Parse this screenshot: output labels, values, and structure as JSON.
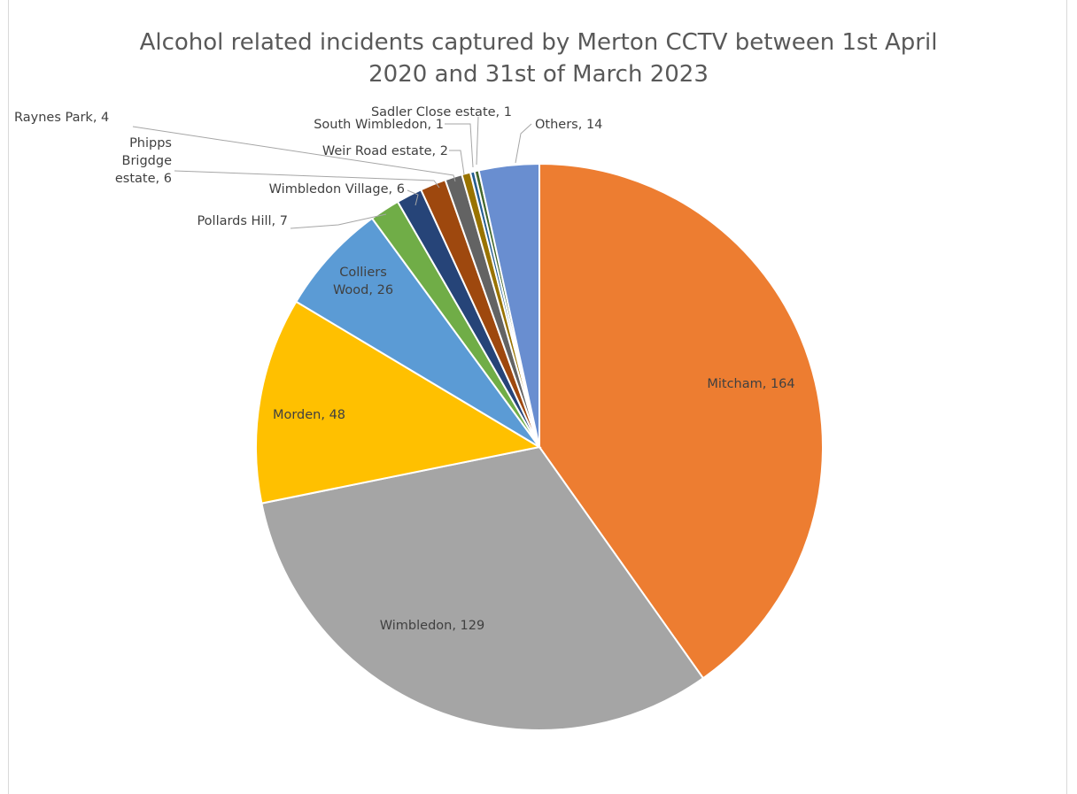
{
  "chart_data": {
    "type": "pie",
    "title_lines": [
      "Alcohol related incidents captured by Merton CCTV between 1st April",
      "2020 and 31st of March 2023"
    ],
    "slices": [
      {
        "name": "Mitcham",
        "value": 164,
        "color": "#ED7D31",
        "label": "Mitcham, 164"
      },
      {
        "name": "Wimbledon",
        "value": 129,
        "color": "#A5A5A5",
        "label": "Wimbledon, 129"
      },
      {
        "name": "Morden",
        "value": 48,
        "color": "#FFC000",
        "label": "Morden, 48"
      },
      {
        "name": "Colliers Wood",
        "value": 26,
        "color": "#5B9BD5",
        "label": "Colliers\nWood, 26"
      },
      {
        "name": "Pollards Hill",
        "value": 7,
        "color": "#70AD47",
        "label": "Pollards Hill, 7"
      },
      {
        "name": "Wimbledon Village",
        "value": 6,
        "color": "#264478",
        "label": "Wimbledon Village, 6"
      },
      {
        "name": "Phipps Brigdge estate",
        "value": 6,
        "color": "#9E480E",
        "label": "Phipps\nBrigdge\nestate, 6"
      },
      {
        "name": "Raynes Park",
        "value": 4,
        "color": "#636363",
        "label": "Raynes Park, 4"
      },
      {
        "name": "Weir Road estate",
        "value": 2,
        "color": "#997300",
        "label": "Weir Road estate, 2"
      },
      {
        "name": "South Wimbledon",
        "value": 1,
        "color": "#255E91",
        "label": "South Wimbledon, 1"
      },
      {
        "name": "Sadler Close estate",
        "value": 1,
        "color": "#43682B",
        "label": "Sadler Close estate, 1"
      },
      {
        "name": "Others",
        "value": 14,
        "color": "#698ED0",
        "label": "Others, 14"
      }
    ],
    "legend": "none"
  }
}
